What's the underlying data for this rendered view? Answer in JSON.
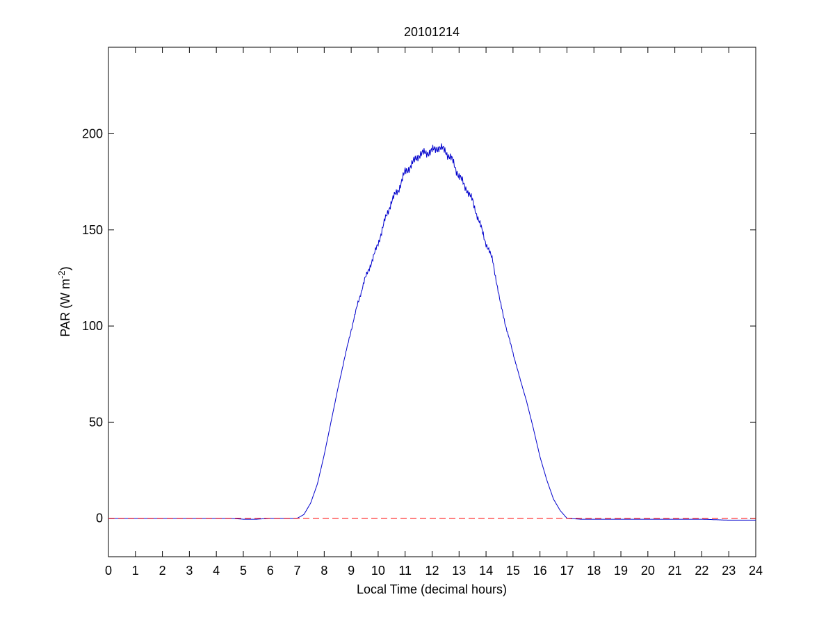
{
  "chart_data": {
    "type": "line",
    "title": "20101214",
    "xlabel": "Local Time (decimal hours)",
    "ylabel_main": "PAR (W m",
    "ylabel_sup": "-2",
    "ylabel_close": ")",
    "xlim": [
      0,
      24
    ],
    "ylim": [
      -20,
      245
    ],
    "xticks": [
      "0",
      "1",
      "2",
      "3",
      "4",
      "5",
      "6",
      "7",
      "8",
      "9",
      "10",
      "11",
      "12",
      "13",
      "14",
      "15",
      "16",
      "17",
      "18",
      "19",
      "20",
      "21",
      "22",
      "23",
      "24"
    ],
    "yticks": [
      "0",
      "50",
      "100",
      "150",
      "200"
    ],
    "grid": false,
    "colors": {
      "series": "#0000cc",
      "reference": "#ff0000"
    },
    "series": [
      {
        "style": "solid",
        "x": [
          0,
          4.5,
          5.0,
          5.5,
          6.0,
          7.0,
          7.25,
          7.5,
          7.75,
          8.0,
          8.25,
          8.5,
          8.75,
          9.0,
          9.25,
          9.5,
          9.75,
          10.0,
          10.25,
          10.5,
          10.75,
          11.0,
          11.25,
          11.5,
          11.75,
          12.0,
          12.25,
          12.5,
          12.75,
          13.0,
          13.25,
          13.5,
          13.75,
          14.0,
          14.25,
          14.5,
          14.75,
          15.0,
          15.25,
          15.5,
          15.75,
          16.0,
          16.25,
          16.5,
          16.75,
          17.0,
          17.5,
          18.0,
          20.0,
          22.0,
          23.0,
          24.0
        ],
        "y": [
          0,
          0,
          -0.5,
          -0.5,
          0,
          0,
          2,
          8,
          18,
          33,
          50,
          67,
          83,
          98,
          112,
          124,
          133,
          143,
          155,
          165,
          171,
          180,
          184,
          189,
          190,
          191,
          193,
          191,
          186,
          178,
          172,
          165,
          154,
          143,
          134,
          114,
          99,
          86,
          73,
          61,
          47,
          32,
          20,
          10,
          4,
          0,
          -0.5,
          -0.5,
          -0.5,
          -0.5,
          -1,
          -1
        ]
      },
      {
        "style": "dashed",
        "x": [
          0,
          24
        ],
        "y": [
          0,
          0
        ]
      }
    ]
  }
}
